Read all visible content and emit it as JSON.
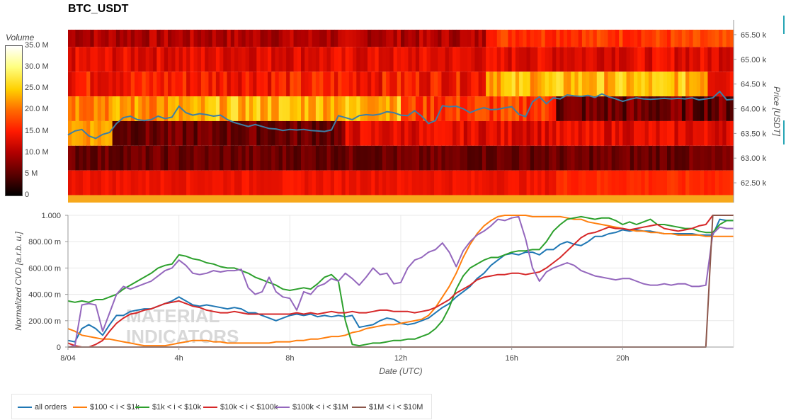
{
  "title": "BTC_USDT",
  "colorbar": {
    "label": "Volume",
    "ticks": [
      "35.0 M",
      "30.0 M",
      "25.0 M",
      "20.0 M",
      "15.0 M",
      "10.0 M",
      "5 M",
      "0"
    ]
  },
  "watermark": [
    "MATERIAL",
    "INDICATORS"
  ],
  "colors": {
    "all_orders": "#1f77b4",
    "r100_1k": "#ff7f0e",
    "r1k_10k": "#2ca02c",
    "r10k_100k": "#d62728",
    "r100k_1M": "#9467bd",
    "r1M_10M": "#8c564b"
  },
  "chart_data": [
    {
      "type": "heatmap",
      "title": "BTC_USDT",
      "xlabel": "",
      "ylabel": "Price [USDT]",
      "y_ticks": [
        "65.50 k",
        "65.00 k",
        "64.50 k",
        "64.00 k",
        "63.50 k",
        "63.00 k",
        "62.50 k"
      ],
      "y_tick_values": [
        65500,
        65000,
        64500,
        64000,
        63500,
        63000,
        62500
      ],
      "ylim": [
        62100,
        65800
      ],
      "xlim": [
        0,
        24
      ],
      "price_bands": [
        65600,
        65250,
        64750,
        64250,
        63750,
        63250,
        62750,
        62250
      ],
      "colorscale": "black-red-yellow-white",
      "zlim": [
        0,
        35.0
      ],
      "price_line": {
        "color": "#3d7fa6",
        "x": [
          0,
          0.25,
          0.5,
          0.75,
          1,
          1.25,
          1.5,
          1.75,
          2,
          2.25,
          2.5,
          2.75,
          3,
          3.25,
          3.5,
          3.75,
          4,
          4.25,
          4.5,
          4.75,
          5,
          5.25,
          5.5,
          5.75,
          6,
          6.25,
          6.5,
          6.75,
          7,
          7.25,
          7.5,
          7.75,
          8,
          8.25,
          8.5,
          8.75,
          9,
          9.25,
          9.5,
          9.75,
          10,
          10.25,
          10.5,
          10.75,
          11,
          11.25,
          11.5,
          11.75,
          12,
          12.25,
          12.5,
          12.75,
          13,
          13.25,
          13.5,
          13.75,
          14,
          14.25,
          14.5,
          14.75,
          15,
          15.25,
          15.5,
          15.75,
          16,
          16.25,
          16.5,
          16.75,
          17,
          17.25,
          17.5,
          17.75,
          18,
          18.25,
          18.5,
          18.75,
          19,
          19.25,
          19.5,
          19.75,
          20,
          20.25,
          20.5,
          20.75,
          21,
          21.25,
          21.5,
          21.75,
          22,
          22.25,
          22.5,
          22.75,
          23,
          23.25,
          23.5,
          23.75,
          24
        ],
        "y": [
          63470,
          63550,
          63580,
          63450,
          63400,
          63480,
          63520,
          63700,
          63820,
          63850,
          63780,
          63760,
          63780,
          63850,
          63800,
          63830,
          64050,
          63920,
          63870,
          63900,
          63880,
          63850,
          63870,
          63780,
          63720,
          63680,
          63640,
          63680,
          63640,
          63600,
          63590,
          63560,
          63580,
          63570,
          63580,
          63560,
          63550,
          63540,
          63570,
          63860,
          63820,
          63780,
          63860,
          63880,
          63870,
          63890,
          63940,
          63920,
          63870,
          63860,
          63960,
          63850,
          63700,
          63760,
          64060,
          64040,
          64050,
          64000,
          63920,
          63980,
          64020,
          63980,
          63990,
          64020,
          64040,
          63890,
          63840,
          64140,
          64240,
          64100,
          64220,
          64200,
          64280,
          64260,
          64250,
          64270,
          64230,
          64300,
          64240,
          64200,
          64150,
          64190,
          64220,
          64200,
          64190,
          64200,
          64210,
          64200,
          64210,
          64200,
          64220,
          64180,
          64200,
          64220,
          64350,
          64180,
          64190
        ]
      }
    },
    {
      "type": "line",
      "xlabel": "Date (UTC)",
      "ylabel": "Normalized CVD [a.r.b. u.]",
      "x_ticks": [
        "8/04",
        "4h",
        "8h",
        "12h",
        "16h",
        "20h"
      ],
      "x_tick_values": [
        0,
        4,
        8,
        12,
        16,
        20
      ],
      "y_ticks": [
        "1.000",
        "800.00 m",
        "600.00 m",
        "400.00 m",
        "200.00 m",
        "0"
      ],
      "y_tick_values": [
        1.0,
        0.8,
        0.6,
        0.4,
        0.2,
        0.0
      ],
      "xlim": [
        0,
        24
      ],
      "ylim": [
        0,
        1.0
      ],
      "x": [
        0,
        0.25,
        0.5,
        0.75,
        1,
        1.25,
        1.5,
        1.75,
        2,
        2.25,
        2.5,
        2.75,
        3,
        3.25,
        3.5,
        3.75,
        4,
        4.25,
        4.5,
        4.75,
        5,
        5.25,
        5.5,
        5.75,
        6,
        6.25,
        6.5,
        6.75,
        7,
        7.25,
        7.5,
        7.75,
        8,
        8.25,
        8.5,
        8.75,
        9,
        9.25,
        9.5,
        9.75,
        10,
        10.25,
        10.5,
        10.75,
        11,
        11.25,
        11.5,
        11.75,
        12,
        12.25,
        12.5,
        12.75,
        13,
        13.25,
        13.5,
        13.75,
        14,
        14.25,
        14.5,
        14.75,
        15,
        15.25,
        15.5,
        15.75,
        16,
        16.25,
        16.5,
        16.75,
        17,
        17.25,
        17.5,
        17.75,
        18,
        18.25,
        18.5,
        18.75,
        19,
        19.25,
        19.5,
        19.75,
        20,
        20.25,
        20.5,
        20.75,
        21,
        21.25,
        21.5,
        21.75,
        22,
        22.25,
        22.5,
        22.75,
        23,
        23.25,
        23.5,
        23.75,
        24
      ],
      "series": [
        {
          "name": "all orders",
          "color": "#1f77b4",
          "values": [
            0.05,
            0.04,
            0.14,
            0.17,
            0.14,
            0.09,
            0.17,
            0.24,
            0.24,
            0.27,
            0.28,
            0.29,
            0.29,
            0.31,
            0.33,
            0.35,
            0.38,
            0.35,
            0.32,
            0.31,
            0.32,
            0.31,
            0.3,
            0.29,
            0.3,
            0.29,
            0.26,
            0.26,
            0.24,
            0.22,
            0.2,
            0.22,
            0.24,
            0.25,
            0.24,
            0.25,
            0.23,
            0.24,
            0.23,
            0.24,
            0.23,
            0.24,
            0.15,
            0.16,
            0.17,
            0.2,
            0.22,
            0.21,
            0.18,
            0.17,
            0.18,
            0.2,
            0.22,
            0.26,
            0.3,
            0.33,
            0.38,
            0.42,
            0.46,
            0.52,
            0.56,
            0.62,
            0.66,
            0.7,
            0.71,
            0.7,
            0.72,
            0.72,
            0.7,
            0.74,
            0.74,
            0.78,
            0.8,
            0.78,
            0.77,
            0.8,
            0.84,
            0.84,
            0.86,
            0.87,
            0.89,
            0.88,
            0.89,
            0.88,
            0.88,
            0.87,
            0.86,
            0.86,
            0.86,
            0.86,
            0.86,
            0.85,
            0.85,
            0.85,
            0.97,
            0.96,
            0.96
          ]
        },
        {
          "name": "$100 < i < $1k",
          "color": "#ff7f0e",
          "values": [
            0.14,
            0.12,
            0.09,
            0.08,
            0.07,
            0.06,
            0.06,
            0.05,
            0.04,
            0.03,
            0.02,
            0.01,
            0.01,
            0.01,
            0.01,
            0.02,
            0.03,
            0.04,
            0.05,
            0.05,
            0.05,
            0.04,
            0.04,
            0.03,
            0.03,
            0.03,
            0.03,
            0.03,
            0.03,
            0.03,
            0.04,
            0.04,
            0.04,
            0.05,
            0.05,
            0.06,
            0.06,
            0.07,
            0.08,
            0.08,
            0.09,
            0.11,
            0.12,
            0.14,
            0.15,
            0.16,
            0.17,
            0.17,
            0.18,
            0.19,
            0.2,
            0.21,
            0.24,
            0.3,
            0.38,
            0.46,
            0.56,
            0.68,
            0.78,
            0.86,
            0.92,
            0.96,
            0.99,
            1.0,
            1.0,
            1.0,
            1.0,
            0.99,
            0.99,
            0.99,
            0.99,
            0.99,
            0.98,
            0.97,
            0.97,
            0.95,
            0.94,
            0.93,
            0.92,
            0.91,
            0.9,
            0.89,
            0.88,
            0.88,
            0.87,
            0.87,
            0.86,
            0.86,
            0.85,
            0.85,
            0.85,
            0.85,
            0.84,
            0.84,
            0.84,
            0.84,
            0.84
          ]
        },
        {
          "name": "$1k < i < $10k",
          "color": "#2ca02c",
          "values": [
            0.35,
            0.34,
            0.35,
            0.34,
            0.36,
            0.36,
            0.38,
            0.4,
            0.44,
            0.47,
            0.5,
            0.53,
            0.56,
            0.6,
            0.62,
            0.63,
            0.7,
            0.69,
            0.67,
            0.66,
            0.64,
            0.63,
            0.61,
            0.6,
            0.6,
            0.58,
            0.56,
            0.53,
            0.51,
            0.49,
            0.47,
            0.44,
            0.43,
            0.44,
            0.45,
            0.44,
            0.48,
            0.53,
            0.55,
            0.5,
            0.2,
            0.02,
            0.01,
            0.02,
            0.03,
            0.03,
            0.04,
            0.05,
            0.05,
            0.06,
            0.06,
            0.08,
            0.1,
            0.14,
            0.2,
            0.3,
            0.44,
            0.54,
            0.6,
            0.63,
            0.66,
            0.68,
            0.68,
            0.7,
            0.72,
            0.73,
            0.73,
            0.74,
            0.74,
            0.8,
            0.88,
            0.93,
            0.97,
            0.98,
            0.99,
            0.98,
            0.97,
            0.98,
            0.98,
            0.96,
            0.93,
            0.95,
            0.93,
            0.95,
            0.97,
            0.93,
            0.93,
            0.92,
            0.91,
            0.9,
            0.9,
            0.88,
            0.87,
            0.87,
            0.93,
            0.96,
            0.96
          ]
        },
        {
          "name": "$10k < i < $100k",
          "color": "#d62728",
          "values": [
            0.03,
            0.01,
            0.0,
            0.0,
            0.02,
            0.05,
            0.12,
            0.18,
            0.22,
            0.25,
            0.26,
            0.28,
            0.29,
            0.31,
            0.33,
            0.34,
            0.35,
            0.33,
            0.31,
            0.3,
            0.28,
            0.27,
            0.26,
            0.26,
            0.27,
            0.26,
            0.25,
            0.25,
            0.25,
            0.25,
            0.25,
            0.25,
            0.25,
            0.26,
            0.25,
            0.26,
            0.25,
            0.26,
            0.27,
            0.26,
            0.26,
            0.27,
            0.26,
            0.26,
            0.27,
            0.28,
            0.28,
            0.27,
            0.27,
            0.27,
            0.26,
            0.27,
            0.28,
            0.3,
            0.33,
            0.36,
            0.41,
            0.44,
            0.47,
            0.51,
            0.53,
            0.54,
            0.55,
            0.55,
            0.56,
            0.56,
            0.55,
            0.56,
            0.57,
            0.6,
            0.64,
            0.68,
            0.73,
            0.78,
            0.83,
            0.86,
            0.87,
            0.89,
            0.91,
            0.9,
            0.9,
            0.89,
            0.9,
            0.91,
            0.92,
            0.93,
            0.9,
            0.89,
            0.88,
            0.89,
            0.9,
            0.92,
            0.93,
            1.0,
            1.0,
            1.0,
            1.0
          ]
        },
        {
          "name": "$100k < i < $1M",
          "color": "#9467bd",
          "values": [
            0.0,
            0.01,
            0.32,
            0.33,
            0.32,
            0.12,
            0.26,
            0.4,
            0.46,
            0.44,
            0.46,
            0.48,
            0.5,
            0.54,
            0.58,
            0.6,
            0.66,
            0.62,
            0.56,
            0.55,
            0.56,
            0.58,
            0.57,
            0.58,
            0.58,
            0.59,
            0.45,
            0.4,
            0.42,
            0.53,
            0.42,
            0.38,
            0.37,
            0.28,
            0.42,
            0.4,
            0.46,
            0.48,
            0.52,
            0.5,
            0.56,
            0.52,
            0.47,
            0.53,
            0.6,
            0.55,
            0.56,
            0.48,
            0.49,
            0.6,
            0.66,
            0.68,
            0.72,
            0.74,
            0.79,
            0.72,
            0.61,
            0.73,
            0.8,
            0.85,
            0.88,
            0.92,
            0.97,
            0.96,
            0.98,
            0.99,
            0.82,
            0.6,
            0.5,
            0.57,
            0.6,
            0.62,
            0.64,
            0.62,
            0.58,
            0.56,
            0.54,
            0.53,
            0.52,
            0.51,
            0.52,
            0.52,
            0.5,
            0.48,
            0.47,
            0.47,
            0.48,
            0.47,
            0.48,
            0.48,
            0.46,
            0.46,
            0.47,
            0.86,
            0.91,
            0.9,
            0.9
          ]
        },
        {
          "name": "$1M < i < $10M",
          "color": "#8c564b",
          "values": [
            0.0,
            0.0,
            0.0,
            0.0,
            0.0,
            0.0,
            0.0,
            0.0,
            0.0,
            0.0,
            0.0,
            0.0,
            0.0,
            0.0,
            0.0,
            0.0,
            0.0,
            0.0,
            0.0,
            0.0,
            0.0,
            0.0,
            0.0,
            0.0,
            0.0,
            0.0,
            0.0,
            0.0,
            0.0,
            0.0,
            0.0,
            0.0,
            0.0,
            0.0,
            0.0,
            0.0,
            0.0,
            0.0,
            0.0,
            0.0,
            0.0,
            0.0,
            0.0,
            0.0,
            0.0,
            0.0,
            0.0,
            0.0,
            0.0,
            0.0,
            0.0,
            0.0,
            0.0,
            0.0,
            0.0,
            0.0,
            0.0,
            0.0,
            0.0,
            0.0,
            0.0,
            0.0,
            0.0,
            0.0,
            0.0,
            0.0,
            0.0,
            0.0,
            0.0,
            0.0,
            0.0,
            0.0,
            0.0,
            0.0,
            0.0,
            0.0,
            0.0,
            0.0,
            0.0,
            0.0,
            0.0,
            0.0,
            0.0,
            0.0,
            0.0,
            0.0,
            0.0,
            0.0,
            0.0,
            0.0,
            0.0,
            0.0,
            0.0,
            1.0,
            1.0,
            1.0,
            1.0
          ]
        }
      ]
    }
  ]
}
